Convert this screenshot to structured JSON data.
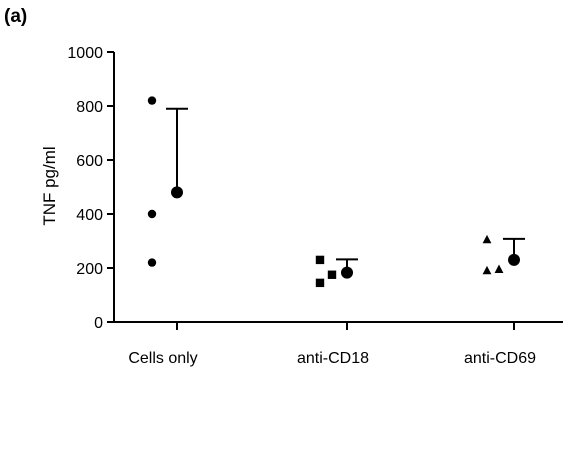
{
  "panel_label": "(a)",
  "chart_data": {
    "type": "scatter",
    "title": "",
    "xlabel": "",
    "ylabel": "TNF pg/ml",
    "ylim": [
      0,
      1000
    ],
    "yticks": [
      0,
      200,
      400,
      600,
      800,
      1000
    ],
    "categories": [
      "Cells only",
      "anti-CD18",
      "anti-CD69"
    ],
    "grid": false,
    "legend": "none",
    "groups": [
      {
        "category": "Cells only",
        "marker": "circle",
        "points": [
          820,
          400,
          220
        ],
        "mean": 480,
        "error_upper": 790
      },
      {
        "category": "anti-CD18",
        "marker": "square",
        "points": [
          230,
          175,
          145
        ],
        "mean": 183,
        "error_upper": 232
      },
      {
        "category": "anti-CD69",
        "marker": "triangle",
        "points": [
          305,
          195,
          190
        ],
        "mean": 230,
        "error_upper": 308
      }
    ]
  }
}
